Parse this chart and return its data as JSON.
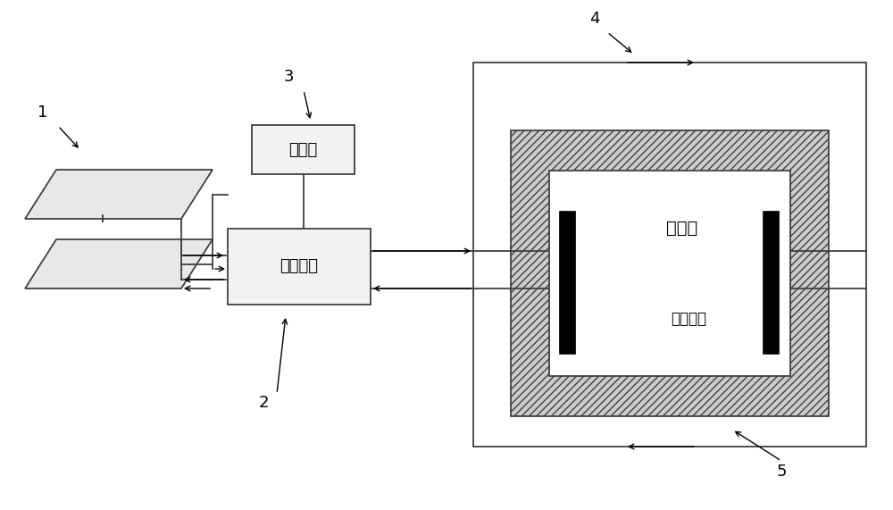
{
  "bg_color": "#ffffff",
  "lc": "#404040",
  "bk": "#000000",
  "gray_fill": "#e8e8e8",
  "box_fill": "#f2f2f2",
  "hatch_fill": "#cccccc",
  "label1": "1",
  "label2": "2",
  "label3": "3",
  "label4": "4",
  "label5": "5",
  "text_controller": "控制器",
  "text_main": "循环主机",
  "text_drying": "烘干房",
  "text_heating": "发热系统"
}
